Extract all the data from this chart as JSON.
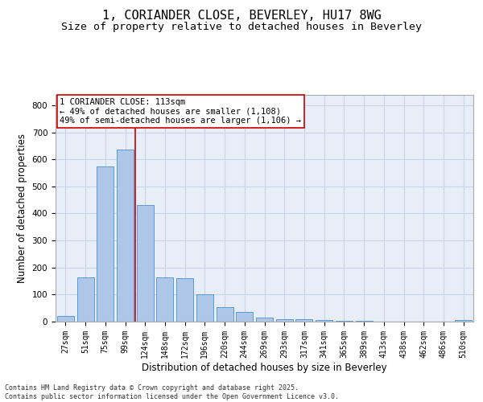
{
  "title": "1, CORIANDER CLOSE, BEVERLEY, HU17 8WG",
  "subtitle": "Size of property relative to detached houses in Beverley",
  "xlabel": "Distribution of detached houses by size in Beverley",
  "ylabel": "Number of detached properties",
  "categories": [
    "27sqm",
    "51sqm",
    "75sqm",
    "99sqm",
    "124sqm",
    "148sqm",
    "172sqm",
    "196sqm",
    "220sqm",
    "244sqm",
    "269sqm",
    "293sqm",
    "317sqm",
    "341sqm",
    "365sqm",
    "389sqm",
    "413sqm",
    "438sqm",
    "462sqm",
    "486sqm",
    "510sqm"
  ],
  "values": [
    20,
    165,
    575,
    635,
    430,
    165,
    160,
    100,
    55,
    35,
    15,
    10,
    8,
    5,
    3,
    2,
    1,
    1,
    0,
    0,
    5
  ],
  "bar_color": "#aec6e8",
  "bar_edge_color": "#5b9bd5",
  "grid_color": "#c8d4e8",
  "background_color": "#e8eef8",
  "property_line_color": "#cc0000",
  "annotation_text": "1 CORIANDER CLOSE: 113sqm\n← 49% of detached houses are smaller (1,108)\n49% of semi-detached houses are larger (1,106) →",
  "annotation_box_color": "#ffffff",
  "annotation_box_edge": "#cc0000",
  "ylim": [
    0,
    840
  ],
  "yticks": [
    0,
    100,
    200,
    300,
    400,
    500,
    600,
    700,
    800
  ],
  "footer": "Contains HM Land Registry data © Crown copyright and database right 2025.\nContains public sector information licensed under the Open Government Licence v3.0.",
  "title_fontsize": 11,
  "subtitle_fontsize": 9.5,
  "tick_fontsize": 7,
  "label_fontsize": 8.5,
  "annotation_fontsize": 7.5,
  "footer_fontsize": 6
}
